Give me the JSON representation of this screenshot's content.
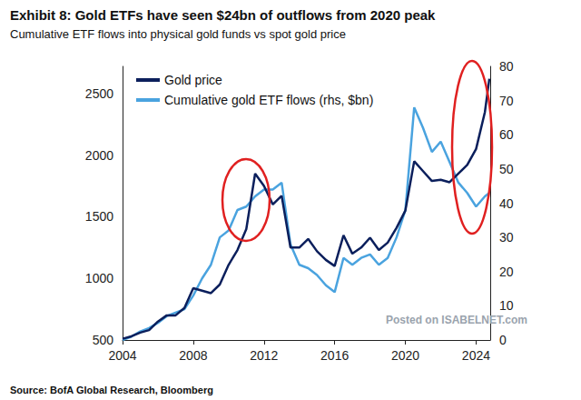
{
  "chart_data": {
    "type": "line",
    "title": "Exhibit 8: Gold ETFs have seen $24bn of outflows from 2020 peak",
    "subtitle": "Cumulative ETF flows into physical gold funds vs spot gold price",
    "source": "Source: BofA Global Research, Bloomberg",
    "watermark": "Posted on ISABELNET.com",
    "x": [
      2004,
      2004.5,
      2005,
      2005.5,
      2006,
      2006.5,
      2007,
      2007.5,
      2008,
      2008.5,
      2009,
      2009.5,
      2010,
      2010.5,
      2011,
      2011.5,
      2012,
      2012.5,
      2013,
      2013.5,
      2014,
      2014.5,
      2015,
      2015.5,
      2016,
      2016.5,
      2017,
      2017.5,
      2018,
      2018.5,
      2019,
      2019.5,
      2020,
      2020.5,
      2021,
      2021.5,
      2022,
      2022.5,
      2023,
      2023.5,
      2024,
      2024.5,
      2024.75
    ],
    "series": [
      {
        "name": "Gold price",
        "color": "#0b1f5c",
        "axis": "y",
        "values": [
          510,
          530,
          560,
          580,
          650,
          700,
          700,
          760,
          920,
          900,
          880,
          950,
          1110,
          1230,
          1400,
          1850,
          1750,
          1600,
          1670,
          1250,
          1250,
          1320,
          1220,
          1150,
          1100,
          1350,
          1200,
          1250,
          1330,
          1230,
          1290,
          1410,
          1550,
          1950,
          1870,
          1790,
          1800,
          1780,
          1850,
          1920,
          2050,
          2350,
          2620
        ]
      },
      {
        "name": "Cumulative gold ETF flows (rhs, $bn)",
        "color": "#4aa3df",
        "axis": "y2",
        "values": [
          0,
          1,
          2.5,
          3.5,
          5,
          7,
          8,
          9,
          13,
          18,
          22,
          30,
          32,
          38,
          39,
          42,
          44,
          44,
          46,
          28,
          22,
          21,
          19,
          16,
          14,
          24,
          22,
          24,
          25,
          22,
          24,
          30,
          38,
          68,
          62,
          55,
          58,
          52,
          46,
          43,
          39,
          42,
          43
        ]
      }
    ],
    "xlim": [
      2004,
      2024.8
    ],
    "xticks": [
      2004,
      2008,
      2012,
      2016,
      2020,
      2024
    ],
    "ylim": [
      500,
      2720
    ],
    "yticks": [
      500,
      1000,
      1500,
      2000,
      2500
    ],
    "y2lim": [
      0,
      80
    ],
    "y2ticks": [
      0,
      10,
      20,
      30,
      40,
      50,
      60,
      70,
      80
    ],
    "grid": false,
    "legend": "upper left"
  }
}
